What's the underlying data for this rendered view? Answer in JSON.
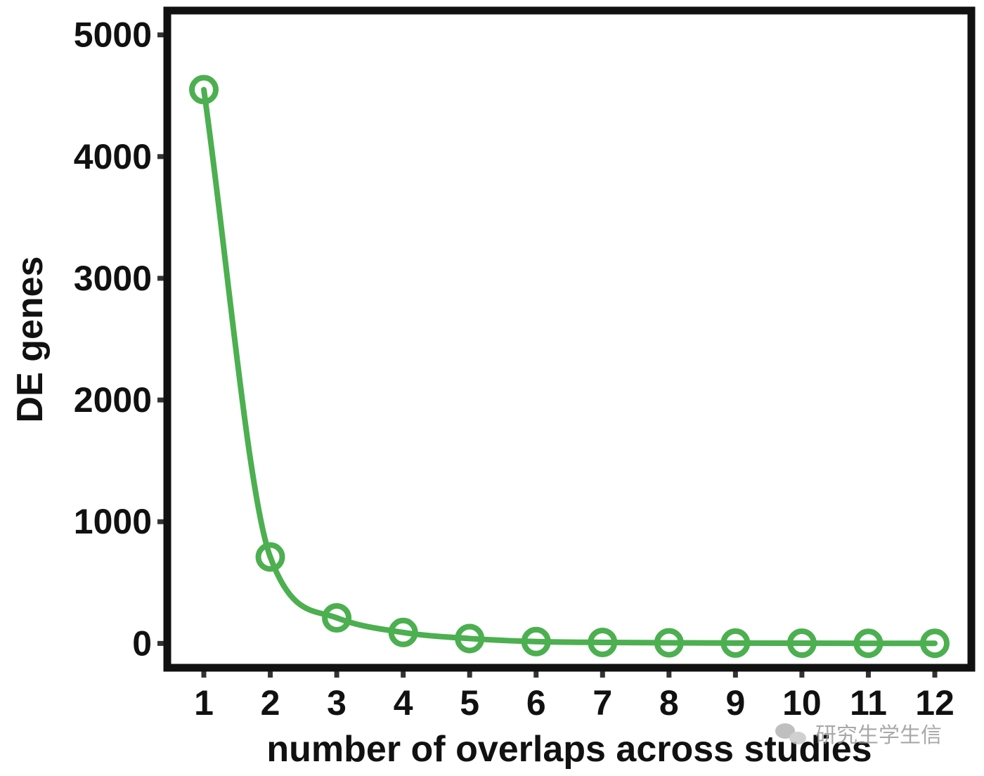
{
  "chart_data": {
    "type": "line",
    "xlabel": "number of overlaps across studies",
    "ylabel": "DE genes",
    "x": [
      1,
      2,
      3,
      4,
      5,
      6,
      7,
      8,
      9,
      10,
      11,
      12
    ],
    "x_tick_labels": [
      "1",
      "2",
      "3",
      "4",
      "5",
      "6",
      "7",
      "8",
      "9",
      "10",
      "11",
      "12"
    ],
    "series": [
      {
        "values": [
          4550,
          710,
          210,
          90,
          40,
          15,
          8,
          5,
          3,
          2,
          1,
          1
        ],
        "color": "#4caf50",
        "marker": "open-circle"
      }
    ],
    "yticks": [
      0,
      1000,
      2000,
      3000,
      4000,
      5000
    ],
    "y_tick_labels": [
      "0",
      "1000",
      "2000",
      "3000",
      "4000",
      "5000"
    ],
    "xlim": [
      0.45,
      12.55
    ],
    "ylim": [
      -200,
      5200
    ],
    "grid": false,
    "smooth": true
  },
  "watermark": {
    "icon": "wechat-icon",
    "text": "研究生学生信"
  }
}
